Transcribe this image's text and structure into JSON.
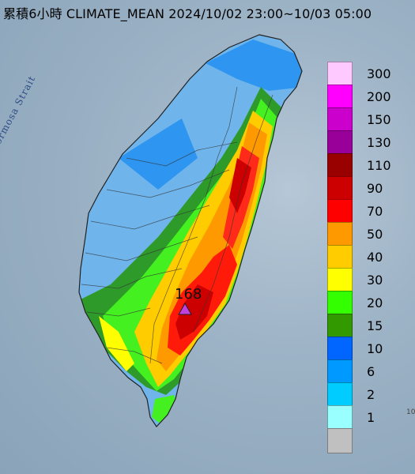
{
  "header": {
    "title": "累積6小時 CLIMATE_MEAN 2024/10/02 23:00~10/03 05:00"
  },
  "map": {
    "strait_label": "Formosa Strait",
    "peak_value": "168",
    "peak_marker_color": "#c040e0",
    "corner_text": "10"
  },
  "legend": {
    "items": [
      {
        "label": "300",
        "color": "#fec9fe"
      },
      {
        "label": "200",
        "color": "#ff00ff"
      },
      {
        "label": "150",
        "color": "#cc00cc"
      },
      {
        "label": "130",
        "color": "#990099"
      },
      {
        "label": "110",
        "color": "#990000"
      },
      {
        "label": "90",
        "color": "#cc0000"
      },
      {
        "label": "70",
        "color": "#ff0000"
      },
      {
        "label": "50",
        "color": "#ff9900"
      },
      {
        "label": "40",
        "color": "#ffcc00"
      },
      {
        "label": "30",
        "color": "#ffff00"
      },
      {
        "label": "20",
        "color": "#33ff00"
      },
      {
        "label": "15",
        "color": "#339900"
      },
      {
        "label": "10",
        "color": "#0066ff"
      },
      {
        "label": "6",
        "color": "#0099ff"
      },
      {
        "label": "2",
        "color": "#00ccff"
      },
      {
        "label": "1",
        "color": "#99ffff"
      },
      {
        "label": "",
        "color": "#c0c0c0"
      }
    ]
  }
}
